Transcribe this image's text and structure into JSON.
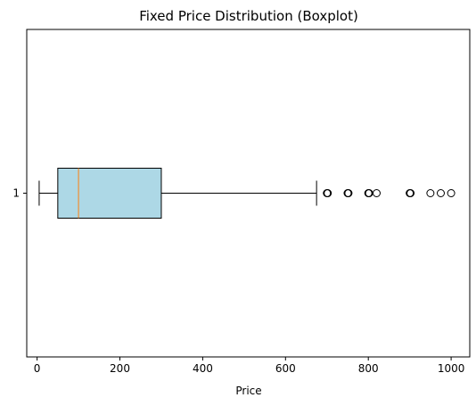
{
  "chart_data": {
    "type": "boxplot",
    "orientation": "horizontal",
    "title": "Fixed Price Distribution (Boxplot)",
    "xlabel": "Price",
    "ylabel": "",
    "xlim": [
      -25,
      1045
    ],
    "xticks": [
      0,
      200,
      400,
      600,
      800,
      1000
    ],
    "xtick_labels": [
      "0",
      "200",
      "400",
      "600",
      "800",
      "1000"
    ],
    "ytick_labels": [
      "1"
    ],
    "grid": false,
    "boxes": [
      {
        "label": "1",
        "whisker_low": 5,
        "q1": 50,
        "median": 100,
        "q3": 300,
        "whisker_high": 675,
        "outliers": [
          700,
          701,
          702,
          750,
          751,
          752,
          800,
          801,
          802,
          820,
          900,
          901,
          902,
          950,
          975,
          1000
        ]
      }
    ],
    "colors": {
      "box_fill": "#add8e6",
      "box_edge": "#000000",
      "median": "#ff7f0e",
      "whisker": "#000000",
      "outlier_edge": "#000000"
    }
  }
}
